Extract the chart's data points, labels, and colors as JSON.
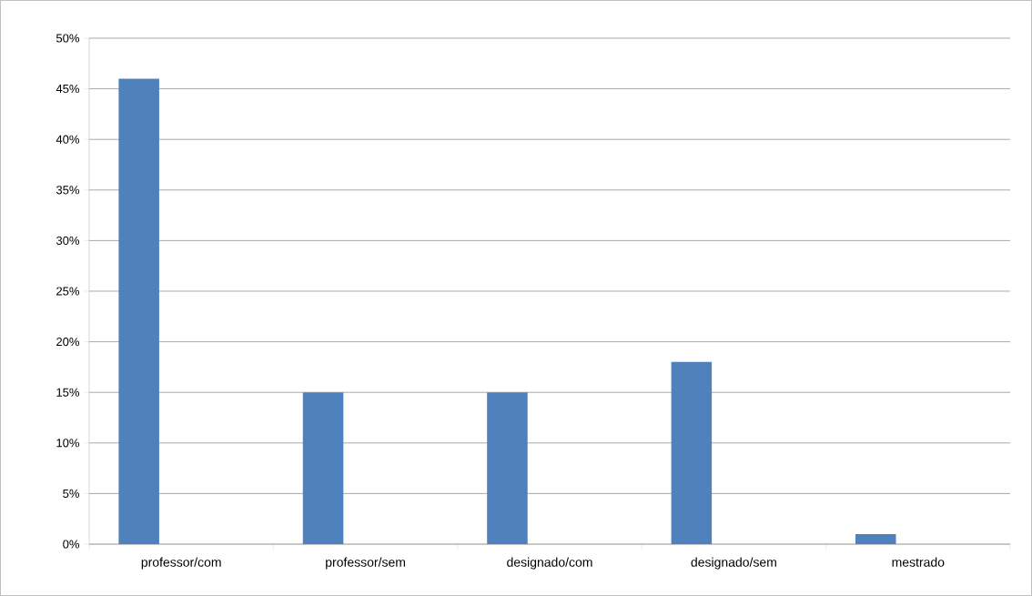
{
  "chart_data": {
    "type": "bar",
    "categories": [
      "professor/com",
      "professor/sem",
      "designado/com",
      "designado/sem",
      "mestrado"
    ],
    "values": [
      46,
      15,
      15,
      18,
      1
    ],
    "color": "#4f81bd",
    "ylim": [
      0,
      50
    ],
    "yticks": [
      {
        "value": 0,
        "label": "0%"
      },
      {
        "value": 5,
        "label": "5%"
      },
      {
        "value": 10,
        "label": "10%"
      },
      {
        "value": 15,
        "label": "15%"
      },
      {
        "value": 20,
        "label": "20%"
      },
      {
        "value": 25,
        "label": "25%"
      },
      {
        "value": 30,
        "label": "30%"
      },
      {
        "value": 35,
        "label": "35%"
      },
      {
        "value": 40,
        "label": "40%"
      },
      {
        "value": 45,
        "label": "45%"
      },
      {
        "value": 50,
        "label": "50%"
      }
    ],
    "grid": "y"
  }
}
